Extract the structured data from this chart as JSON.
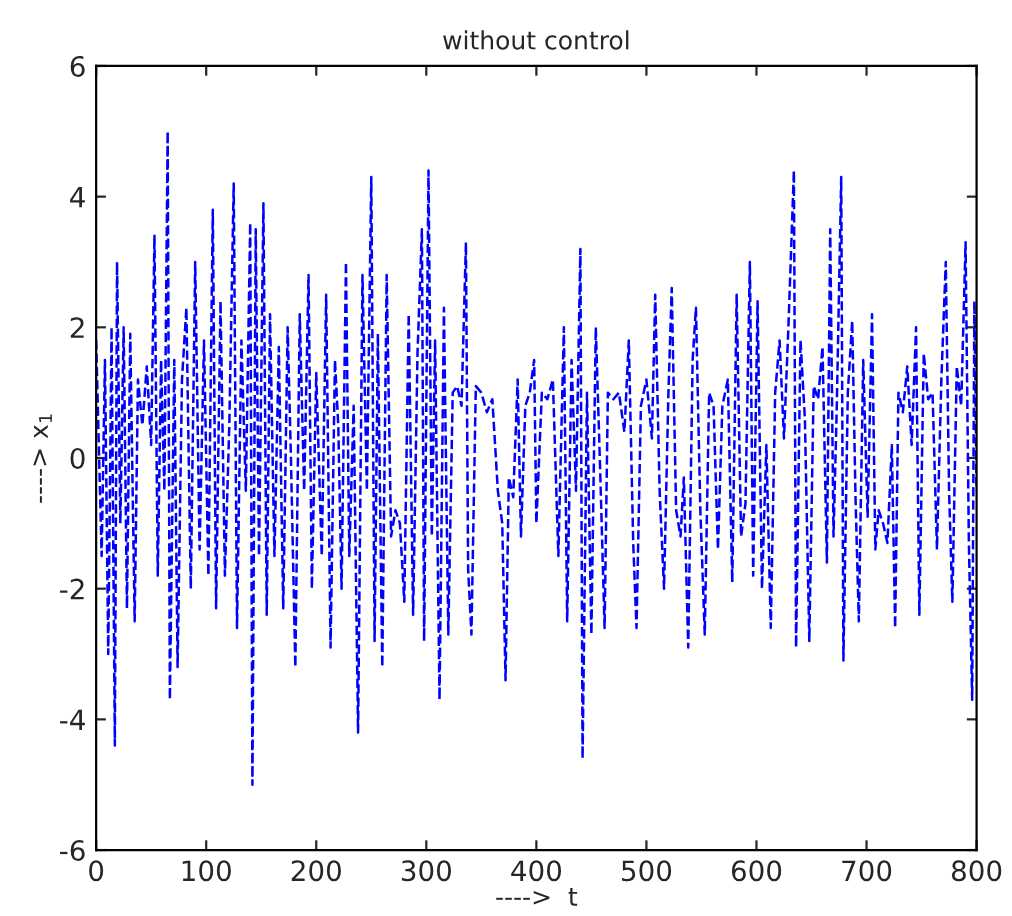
{
  "chart_data": {
    "type": "line",
    "title": "without control",
    "xlabel": "---->  t",
    "ylabel": "----> x$_{1}$",
    "xlim": [
      0,
      800
    ],
    "ylim": [
      -6,
      6
    ],
    "xticks": [
      0,
      100,
      200,
      300,
      400,
      500,
      600,
      700,
      800
    ],
    "yticks": [
      -6,
      -4,
      -2,
      0,
      2,
      4,
      6
    ],
    "grid": false,
    "line_style": "dashed",
    "marker": "none",
    "series": [
      {
        "color": "#0000ff",
        "x": [
          0,
          5,
          8,
          11,
          14,
          17,
          19,
          22,
          25,
          28,
          31,
          35,
          38,
          42,
          46,
          50,
          53,
          56,
          59,
          62,
          65,
          67,
          71,
          74,
          78,
          82,
          86,
          90,
          94,
          98,
          102,
          106,
          109,
          113,
          117,
          121,
          125,
          128,
          132,
          136,
          140,
          142,
          145,
          148,
          152,
          155,
          158,
          162,
          166,
          170,
          174,
          177,
          181,
          185,
          189,
          193,
          196,
          200,
          205,
          209,
          213,
          217,
          220,
          223,
          227,
          230,
          234,
          238,
          242,
          246,
          250,
          253,
          256,
          260,
          264,
          268,
          272,
          276,
          280,
          284,
          288,
          292,
          296,
          298,
          302,
          305,
          308,
          312,
          316,
          320,
          324,
          328,
          332,
          336,
          338,
          341,
          345,
          350,
          355,
          360,
          365,
          369,
          372,
          375,
          379,
          383,
          386,
          390,
          394,
          398,
          400,
          405,
          410,
          415,
          420,
          425,
          428,
          432,
          436,
          440,
          442,
          446,
          450,
          454,
          458,
          462,
          465,
          470,
          475,
          480,
          484,
          488,
          491,
          495,
          500,
          505,
          508,
          512,
          516,
          520,
          523,
          527,
          531,
          534,
          538,
          542,
          545,
          549,
          553,
          557,
          561,
          565,
          569,
          574,
          578,
          582,
          586,
          590,
          594,
          597,
          601,
          605,
          609,
          613,
          617,
          621,
          625,
          629,
          634,
          636,
          640,
          644,
          648,
          652,
          656,
          660,
          664,
          667,
          670,
          673,
          677,
          679,
          683,
          687,
          690,
          693,
          697,
          701,
          705,
          708,
          711,
          715,
          719,
          723,
          726,
          729,
          733,
          737,
          741,
          745,
          748,
          752,
          756,
          760,
          764,
          768,
          772,
          775,
          778,
          782,
          786,
          790,
          793,
          796,
          798,
          800
        ],
        "values": [
          1.8,
          -1.5,
          1.5,
          -3,
          2,
          -4.4,
          3,
          -1,
          2,
          -2.3,
          1.9,
          -2.5,
          1.2,
          0.5,
          1.4,
          0.2,
          3.4,
          -1.8,
          1.5,
          -0.5,
          5,
          -3.7,
          1.5,
          -3.2,
          1.2,
          2.3,
          -2,
          3,
          -1.4,
          1.8,
          -1.8,
          3.8,
          -2.3,
          2.4,
          -1.8,
          0.5,
          4.2,
          -2.6,
          1.8,
          -0.5,
          3.6,
          -5,
          3.5,
          -1.5,
          3.9,
          -2.4,
          2.2,
          -1.5,
          1.7,
          -2.3,
          2,
          0,
          -3.2,
          2.2,
          -0.5,
          2.8,
          -2,
          1.3,
          -1.5,
          2.5,
          -2.9,
          1.5,
          0.5,
          -2,
          3,
          -1.5,
          0.8,
          -4.2,
          2.8,
          -0.5,
          4.3,
          -2.8,
          1.9,
          -3.2,
          2.8,
          -1.2,
          -0.8,
          -1,
          -2.2,
          2.2,
          -2.4,
          1.6,
          3.5,
          -2.8,
          4.4,
          -1.2,
          1.8,
          -3.7,
          2.3,
          -2.7,
          1,
          1.1,
          0.8,
          3.3,
          -1.7,
          -2.7,
          1.1,
          1.0,
          0.7,
          0.9,
          -0.5,
          -1,
          -3.4,
          -0.3,
          -0.6,
          1.2,
          -1.2,
          0.8,
          1.0,
          1.5,
          -1,
          1.0,
          0.9,
          1.2,
          -1.5,
          2,
          -2.5,
          1.5,
          -0.5,
          3.2,
          -4.6,
          1.0,
          -2.7,
          2.0,
          -0.2,
          -2.6,
          1.0,
          0.9,
          1.0,
          0.4,
          1.8,
          -1.3,
          -2.6,
          0.8,
          1.2,
          0.3,
          2.5,
          -0.5,
          -2.0,
          1.0,
          2.6,
          -0.8,
          -1.2,
          -0.3,
          -2.9,
          1.5,
          2.3,
          -0.8,
          -2.7,
          1.0,
          0.8,
          -1.4,
          0.8,
          1.2,
          -1.9,
          2.5,
          -1.2,
          -0.7,
          3.0,
          -1.8,
          2.4,
          -2.0,
          0.2,
          -2.6,
          1.0,
          1.8,
          0.3,
          2.0,
          4.4,
          -2.9,
          1.8,
          0.6,
          -2.8,
          1.1,
          0.9,
          1.7,
          -1.6,
          3.5,
          -1.2,
          0.8,
          4.3,
          -3.1,
          1.0,
          2.1,
          -0.6,
          -2.5,
          1.5,
          -0.9,
          2.2,
          -1.4,
          -0.8,
          -1.0,
          -1.3,
          0.2,
          -2.6,
          1.0,
          0.7,
          1.4,
          0.2,
          2.0,
          -2.4,
          1.6,
          0.9,
          1.0,
          -1.4,
          1.2,
          3.0,
          -0.5,
          -2.2,
          1.4,
          0.8,
          3.3,
          -1.3,
          -3.7,
          2.4,
          -0.5
        ]
      }
    ]
  }
}
